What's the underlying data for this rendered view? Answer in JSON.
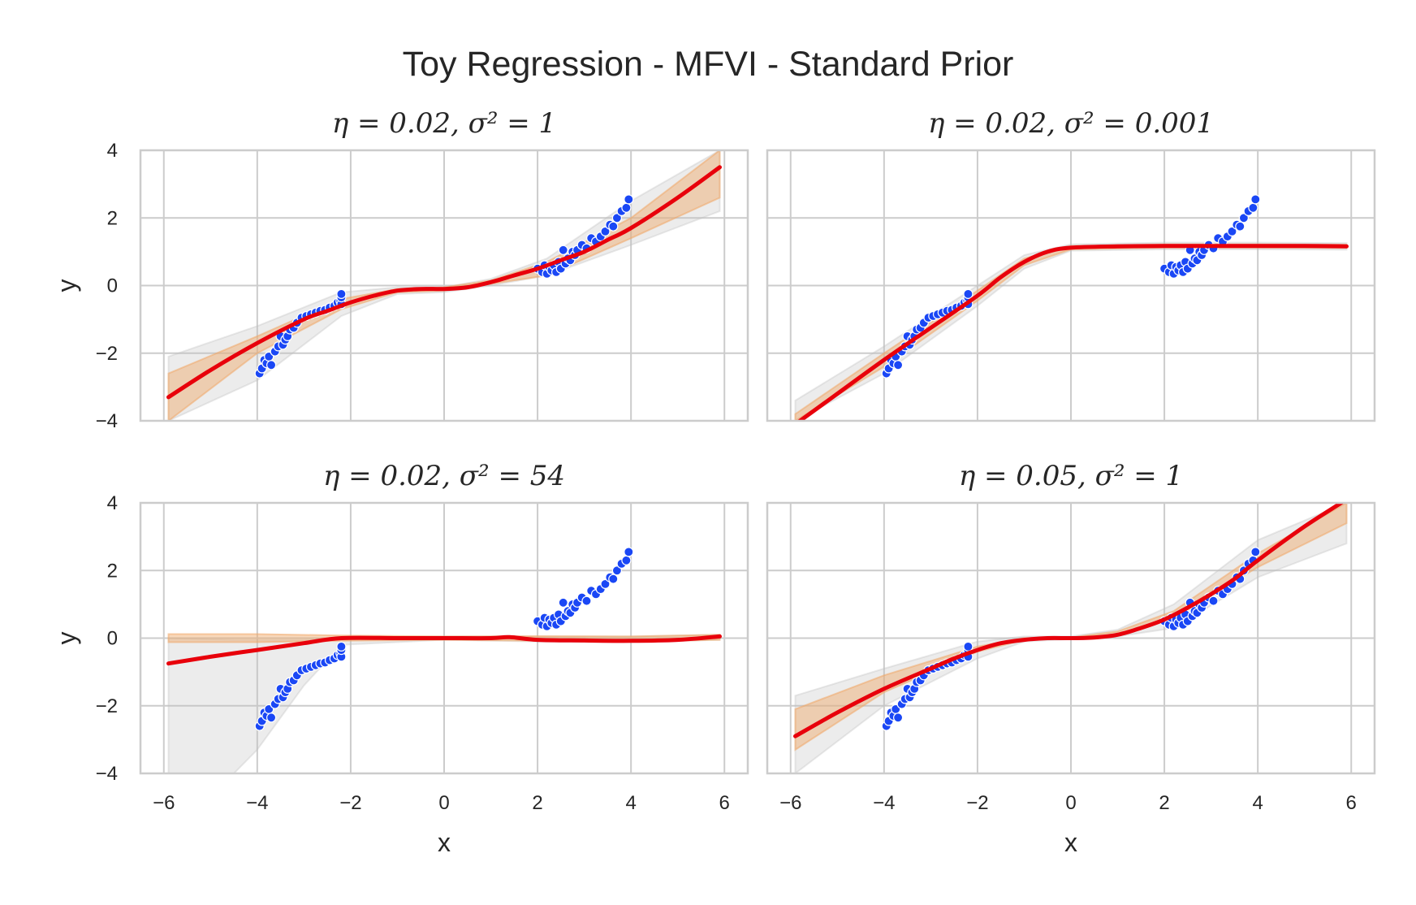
{
  "figure_title": "Toy Regression - MFVI - Standard Prior",
  "colors": {
    "mean": "#e8000b",
    "band_inner": "#f0a868",
    "band_outer": "#bfbfbf",
    "points": "#1a47f5",
    "grid": "#cccccc",
    "text": "#262626"
  },
  "chart_data": [
    {
      "type": "line",
      "title": "η = 0.02, σ² = 1",
      "xlabel": "",
      "ylabel": "y",
      "xlim": [
        -6.5,
        6.5
      ],
      "ylim": [
        -4,
        4
      ],
      "xticks": [
        "−6",
        "−4",
        "−2",
        "0",
        "2",
        "4",
        "6"
      ],
      "yticks": [
        "−4",
        "−2",
        "0",
        "2",
        "4"
      ],
      "grid": true,
      "mean": {
        "x": [
          -5.9,
          -5,
          -4,
          -3,
          -2.5,
          -2,
          -1.5,
          -1,
          -0.5,
          0,
          0.5,
          1,
          1.5,
          2,
          2.5,
          3,
          3.5,
          4,
          5,
          5.9
        ],
        "y": [
          -3.3,
          -2.5,
          -1.7,
          -1.0,
          -0.75,
          -0.5,
          -0.3,
          -0.15,
          -0.1,
          -0.1,
          -0.05,
          0.1,
          0.3,
          0.5,
          0.75,
          1.0,
          1.35,
          1.7,
          2.6,
          3.5
        ]
      },
      "band_inner": {
        "x": [
          -5.9,
          -4,
          -2.2,
          -1,
          0,
          1,
          2.2,
          4,
          5.9
        ],
        "lower": [
          -4.0,
          -2.0,
          -0.7,
          -0.2,
          -0.15,
          0.05,
          0.3,
          1.4,
          2.6
        ],
        "upper": [
          -2.6,
          -1.5,
          -0.4,
          -0.1,
          -0.05,
          0.15,
          0.7,
          2.0,
          4.2
        ]
      },
      "band_outer": {
        "x": [
          -5.9,
          -4,
          -2.2,
          -1,
          0,
          1,
          2.2,
          4,
          5.9
        ],
        "lower": [
          -4.2,
          -2.8,
          -0.9,
          -0.25,
          -0.2,
          0.0,
          0.3,
          1.2,
          2.2
        ],
        "upper": [
          -2.1,
          -1.2,
          -0.2,
          -0.05,
          -0.05,
          0.2,
          0.8,
          2.5,
          4.4
        ]
      }
    },
    {
      "type": "line",
      "title": "η = 0.02, σ² = 0.001",
      "xlabel": "",
      "ylabel": "",
      "xlim": [
        -6.5,
        6.5
      ],
      "ylim": [
        -4,
        4
      ],
      "xticks": [
        "−6",
        "−4",
        "−2",
        "0",
        "2",
        "4",
        "6"
      ],
      "yticks": [
        "−4",
        "−2",
        "0",
        "2",
        "4"
      ],
      "grid": true,
      "mean": {
        "x": [
          -5.9,
          -5,
          -4,
          -3,
          -2,
          -1.5,
          -1,
          -0.5,
          0,
          1,
          2,
          3,
          4,
          5,
          5.9
        ],
        "y": [
          -4.1,
          -3.2,
          -2.2,
          -1.25,
          -0.3,
          0.25,
          0.7,
          1.0,
          1.12,
          1.16,
          1.17,
          1.17,
          1.17,
          1.17,
          1.16
        ]
      },
      "band_inner": {
        "x": [
          -5.9,
          -4,
          -2,
          -1,
          0,
          2,
          4,
          5.9
        ],
        "lower": [
          -4.3,
          -2.4,
          -0.45,
          0.6,
          1.07,
          1.12,
          1.12,
          1.11
        ],
        "upper": [
          -3.8,
          -2.0,
          -0.15,
          0.8,
          1.17,
          1.22,
          1.22,
          1.21
        ]
      },
      "band_outer": {
        "x": [
          -5.9,
          -4,
          -2,
          -1,
          0,
          2,
          4,
          5.9
        ],
        "lower": [
          -4.5,
          -2.6,
          -0.6,
          0.5,
          1.03,
          1.07,
          1.07,
          1.06
        ],
        "upper": [
          -3.4,
          -1.8,
          0.0,
          0.9,
          1.22,
          1.27,
          1.27,
          1.26
        ]
      }
    },
    {
      "type": "line",
      "title": "η = 0.02, σ² = 54",
      "xlabel": "x",
      "ylabel": "y",
      "xlim": [
        -6.5,
        6.5
      ],
      "ylim": [
        -4,
        4
      ],
      "xticks": [
        "−6",
        "−4",
        "−2",
        "0",
        "2",
        "4",
        "6"
      ],
      "yticks": [
        "−4",
        "−2",
        "0",
        "2",
        "4"
      ],
      "grid": true,
      "mean": {
        "x": [
          -5.9,
          -5,
          -4,
          -3,
          -2.2,
          -1,
          0,
          1,
          1.4,
          2,
          3,
          4,
          5,
          5.9
        ],
        "y": [
          -0.75,
          -0.55,
          -0.35,
          -0.15,
          0.0,
          0.0,
          0.0,
          0.0,
          0.03,
          -0.05,
          -0.07,
          -0.08,
          -0.05,
          0.05
        ]
      },
      "band_inner": {
        "x": [
          -5.9,
          -4,
          -2.2,
          0,
          2,
          4,
          5.9
        ],
        "lower": [
          -0.12,
          -0.12,
          -0.08,
          -0.05,
          -0.08,
          -0.1,
          -0.05
        ],
        "upper": [
          0.12,
          0.12,
          0.08,
          0.05,
          0.06,
          0.05,
          0.1
        ]
      },
      "band_outer": {
        "x": [
          -5.9,
          -4.5,
          -4,
          -3,
          -2.2,
          0,
          2,
          4,
          5.9
        ],
        "lower": [
          -4.0,
          -4.0,
          -3.3,
          -1.4,
          -0.2,
          -0.05,
          -0.1,
          -0.12,
          -0.05
        ],
        "upper": [
          0.0,
          -0.05,
          -0.05,
          -0.05,
          0.0,
          0.05,
          0.05,
          0.05,
          0.1
        ]
      }
    },
    {
      "type": "line",
      "title": "η = 0.05, σ² = 1",
      "xlabel": "x",
      "ylabel": "",
      "xlim": [
        -6.5,
        6.5
      ],
      "ylim": [
        -4,
        4
      ],
      "xticks": [
        "−6",
        "−4",
        "−2",
        "0",
        "2",
        "4",
        "6"
      ],
      "yticks": [
        "−4",
        "−2",
        "0",
        "2",
        "4"
      ],
      "grid": true,
      "mean": {
        "x": [
          -5.9,
          -5,
          -4,
          -3,
          -2.5,
          -2,
          -1.5,
          -1,
          -0.5,
          0,
          0.5,
          1,
          1.5,
          2,
          2.5,
          3,
          3.5,
          4,
          5,
          5.9
        ],
        "y": [
          -2.9,
          -2.2,
          -1.5,
          -0.9,
          -0.6,
          -0.35,
          -0.15,
          -0.05,
          0.0,
          0.0,
          0.02,
          0.1,
          0.3,
          0.55,
          0.9,
          1.3,
          1.75,
          2.3,
          3.3,
          4.1
        ]
      },
      "band_inner": {
        "x": [
          -5.9,
          -4,
          -2,
          -1,
          0,
          1,
          2.2,
          4,
          5.9
        ],
        "lower": [
          -3.3,
          -1.6,
          -0.4,
          -0.05,
          0.0,
          0.1,
          0.6,
          2.1,
          3.4
        ],
        "upper": [
          -2.1,
          -1.1,
          -0.25,
          0.0,
          0.02,
          0.2,
          0.8,
          2.5,
          4.4
        ]
      },
      "band_outer": {
        "x": [
          -5.9,
          -4,
          -2,
          -1,
          0,
          1,
          2.2,
          4,
          5.9
        ],
        "lower": [
          -4.1,
          -2.0,
          -0.6,
          -0.1,
          -0.03,
          0.05,
          0.3,
          1.8,
          2.8
        ],
        "upper": [
          -1.7,
          -0.9,
          -0.1,
          0.05,
          0.05,
          0.25,
          1.0,
          2.9,
          4.6
        ]
      }
    }
  ],
  "training_points": {
    "x": [
      -3.95,
      -3.9,
      -3.85,
      -3.8,
      -3.75,
      -3.7,
      -3.62,
      -3.55,
      -3.5,
      -3.45,
      -3.4,
      -3.35,
      -3.3,
      -3.22,
      -3.15,
      -3.05,
      -2.95,
      -2.85,
      -2.75,
      -2.65,
      -2.55,
      -2.45,
      -2.35,
      -2.28,
      -2.22,
      -2.2,
      -2.2,
      -2.2,
      2.0,
      2.1,
      2.15,
      2.2,
      2.25,
      2.3,
      2.35,
      2.4,
      2.45,
      2.5,
      2.55,
      2.6,
      2.65,
      2.7,
      2.75,
      2.8,
      2.85,
      2.95,
      3.05,
      3.15,
      3.25,
      3.35,
      3.45,
      3.55,
      3.62,
      3.7,
      3.8,
      3.9,
      3.95
    ],
    "y": [
      -2.6,
      -2.45,
      -2.2,
      -2.3,
      -2.1,
      -2.35,
      -1.95,
      -1.8,
      -1.5,
      -1.75,
      -1.6,
      -1.5,
      -1.3,
      -1.25,
      -1.1,
      -0.95,
      -0.9,
      -0.85,
      -0.8,
      -0.75,
      -0.72,
      -0.65,
      -0.6,
      -0.5,
      -0.45,
      -0.55,
      -0.35,
      -0.25,
      0.5,
      0.4,
      0.6,
      0.35,
      0.55,
      0.45,
      0.6,
      0.4,
      0.7,
      0.5,
      1.05,
      0.65,
      0.8,
      0.75,
      1.0,
      0.9,
      1.05,
      1.2,
      1.1,
      1.4,
      1.3,
      1.45,
      1.6,
      1.8,
      1.75,
      2.0,
      2.2,
      2.3,
      2.55
    ]
  }
}
